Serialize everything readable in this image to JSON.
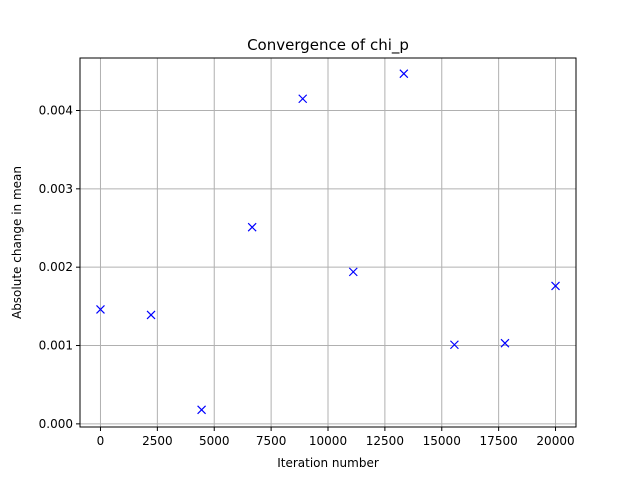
{
  "chart_data": {
    "type": "scatter",
    "title": "Convergence of chi_p",
    "xlabel": "Iteration number",
    "ylabel": "Absolute change in mean",
    "xlim": [
      -900,
      20900
    ],
    "ylim": [
      -4e-05,
      0.00467
    ],
    "xticks": [
      0,
      2500,
      5000,
      7500,
      10000,
      12500,
      15000,
      17500,
      20000
    ],
    "yticks": [
      0.0,
      0.001,
      0.002,
      0.003,
      0.004
    ],
    "xtick_labels": [
      "0",
      "2500",
      "5000",
      "7500",
      "10000",
      "12500",
      "15000",
      "17500",
      "20000"
    ],
    "ytick_labels": [
      "0.000",
      "0.001",
      "0.002",
      "0.003",
      "0.004"
    ],
    "grid": true,
    "marker": "x",
    "color": "#0000ff",
    "series": [
      {
        "x": [
          0,
          2222,
          4444,
          6667,
          8889,
          11111,
          13333,
          15556,
          17778,
          20000
        ],
        "y": [
          0.00146,
          0.00139,
          0.00018,
          0.00251,
          0.00415,
          0.00194,
          0.00447,
          0.00101,
          0.00103,
          0.00176
        ]
      }
    ]
  }
}
